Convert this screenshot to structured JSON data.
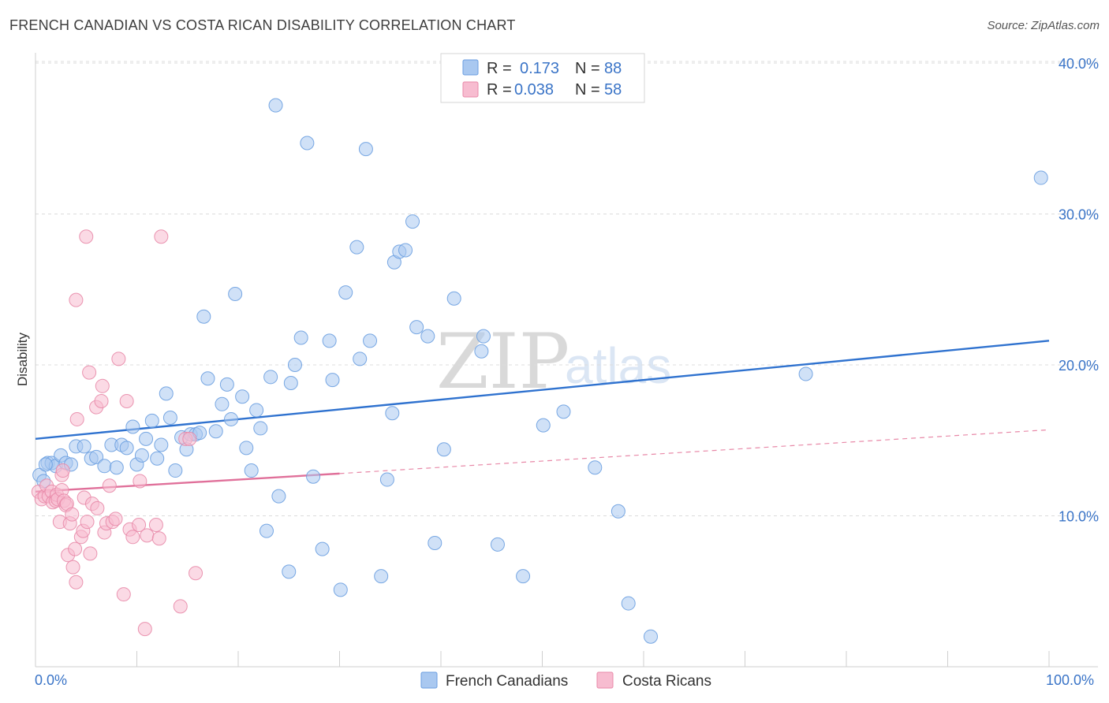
{
  "header": {
    "title": "FRENCH CANADIAN VS COSTA RICAN DISABILITY CORRELATION CHART",
    "source": "Source: ZipAtlas.com"
  },
  "watermark": {
    "zip": "ZIP",
    "atlas": "atlas"
  },
  "legend": {
    "rows": [
      {
        "r_label": "R =",
        "r_value": "0.173",
        "n_label": "N =",
        "n_value": "88",
        "color": "#a9c8f0",
        "stroke": "#6a9ee0"
      },
      {
        "r_label": "R =",
        "r_value": "0.038",
        "n_label": "N =",
        "n_value": "58",
        "color": "#f7bcd0",
        "stroke": "#e889a8"
      }
    ]
  },
  "chart_data": {
    "type": "scatter",
    "title": "FRENCH CANADIAN VS COSTA RICAN DISABILITY CORRELATION CHART",
    "xlabel": "",
    "ylabel": "Disability",
    "xlim": [
      0,
      100
    ],
    "ylim": [
      0,
      41
    ],
    "x_tick_labels": [
      "0.0%",
      "100.0%"
    ],
    "y_ticks": [
      10,
      20,
      30,
      40
    ],
    "y_tick_labels": [
      "10.0%",
      "20.0%",
      "30.0%",
      "40.0%"
    ],
    "grid": true,
    "legend_position": "top-center",
    "series": [
      {
        "name": "French Canadians",
        "color": "#6a9ee0",
        "fill": "#a9c8f0",
        "trend": {
          "x": [
            0,
            100
          ],
          "y": [
            15.1,
            21.6
          ]
        },
        "points": [
          [
            0.4,
            12.7
          ],
          [
            0.8,
            12.3
          ],
          [
            1.2,
            13.5
          ],
          [
            1.6,
            13.5
          ],
          [
            2.0,
            13.3
          ],
          [
            2.5,
            14.0
          ],
          [
            3.0,
            13.5
          ],
          [
            3.5,
            13.4
          ],
          [
            4.0,
            14.6
          ],
          [
            4.8,
            14.6
          ],
          [
            5.5,
            13.8
          ],
          [
            6.0,
            13.9
          ],
          [
            6.8,
            13.3
          ],
          [
            7.5,
            14.7
          ],
          [
            8.0,
            13.2
          ],
          [
            8.5,
            14.7
          ],
          [
            9.0,
            14.5
          ],
          [
            9.6,
            15.9
          ],
          [
            10.0,
            13.4
          ],
          [
            10.5,
            14.0
          ],
          [
            10.9,
            15.1
          ],
          [
            11.5,
            16.3
          ],
          [
            12.0,
            13.8
          ],
          [
            12.4,
            14.7
          ],
          [
            12.9,
            18.1
          ],
          [
            13.3,
            16.5
          ],
          [
            13.8,
            13.0
          ],
          [
            14.4,
            15.2
          ],
          [
            14.9,
            14.4
          ],
          [
            15.3,
            15.4
          ],
          [
            15.8,
            15.4
          ],
          [
            16.2,
            15.5
          ],
          [
            16.6,
            23.2
          ],
          [
            17.0,
            19.1
          ],
          [
            17.8,
            15.6
          ],
          [
            18.4,
            17.4
          ],
          [
            18.9,
            18.7
          ],
          [
            19.3,
            16.4
          ],
          [
            19.7,
            24.7
          ],
          [
            20.4,
            17.9
          ],
          [
            20.8,
            14.5
          ],
          [
            21.3,
            13.0
          ],
          [
            21.8,
            17.0
          ],
          [
            22.2,
            15.8
          ],
          [
            22.8,
            9.0
          ],
          [
            23.2,
            19.2
          ],
          [
            23.7,
            37.2
          ],
          [
            24.0,
            11.3
          ],
          [
            25.0,
            6.3
          ],
          [
            25.2,
            18.8
          ],
          [
            25.6,
            20.0
          ],
          [
            26.2,
            21.8
          ],
          [
            26.8,
            34.7
          ],
          [
            27.4,
            12.6
          ],
          [
            28.3,
            7.8
          ],
          [
            29.0,
            21.6
          ],
          [
            29.3,
            19.0
          ],
          [
            30.1,
            5.1
          ],
          [
            30.6,
            24.8
          ],
          [
            32.0,
            20.4
          ],
          [
            32.6,
            34.3
          ],
          [
            33.0,
            21.6
          ],
          [
            31.7,
            27.8
          ],
          [
            34.1,
            6.0
          ],
          [
            34.7,
            12.4
          ],
          [
            35.2,
            16.8
          ],
          [
            35.4,
            26.8
          ],
          [
            35.9,
            27.5
          ],
          [
            36.5,
            27.6
          ],
          [
            37.2,
            29.5
          ],
          [
            37.6,
            22.5
          ],
          [
            38.7,
            21.9
          ],
          [
            39.4,
            8.2
          ],
          [
            40.3,
            14.4
          ],
          [
            41.3,
            24.4
          ],
          [
            44.2,
            21.9
          ],
          [
            44.0,
            20.9
          ],
          [
            45.6,
            8.1
          ],
          [
            48.1,
            6.0
          ],
          [
            50.1,
            16.0
          ],
          [
            52.1,
            16.9
          ],
          [
            55.2,
            13.2
          ],
          [
            57.5,
            10.3
          ],
          [
            58.5,
            4.2
          ],
          [
            60.7,
            2.0
          ],
          [
            76.0,
            19.4
          ],
          [
            99.2,
            32.4
          ],
          [
            1.0,
            13.4
          ]
        ]
      },
      {
        "name": "Costa Ricans",
        "color": "#e889a8",
        "fill": "#f7bcd0",
        "trend": {
          "x": [
            0,
            30
          ],
          "y": [
            11.6,
            12.8
          ]
        },
        "trend_ext": {
          "x": [
            30,
            100
          ],
          "y": [
            12.8,
            15.7
          ]
        },
        "points": [
          [
            0.3,
            11.6
          ],
          [
            0.6,
            11.1
          ],
          [
            0.9,
            11.3
          ],
          [
            1.1,
            12.0
          ],
          [
            1.3,
            11.3
          ],
          [
            1.6,
            11.6
          ],
          [
            1.7,
            10.9
          ],
          [
            2.0,
            11.0
          ],
          [
            2.1,
            11.4
          ],
          [
            2.2,
            11.1
          ],
          [
            2.4,
            9.6
          ],
          [
            2.6,
            12.7
          ],
          [
            2.6,
            11.7
          ],
          [
            2.7,
            13.0
          ],
          [
            2.8,
            11.0
          ],
          [
            3.0,
            10.7
          ],
          [
            3.1,
            10.8
          ],
          [
            3.2,
            7.4
          ],
          [
            3.4,
            9.5
          ],
          [
            3.6,
            10.1
          ],
          [
            3.7,
            6.6
          ],
          [
            3.9,
            7.8
          ],
          [
            4.1,
            16.4
          ],
          [
            4.0,
            5.6
          ],
          [
            4.0,
            24.3
          ],
          [
            4.5,
            8.6
          ],
          [
            4.7,
            9.0
          ],
          [
            4.8,
            11.2
          ],
          [
            5.0,
            28.5
          ],
          [
            5.1,
            9.6
          ],
          [
            5.3,
            19.5
          ],
          [
            5.4,
            7.5
          ],
          [
            5.6,
            10.8
          ],
          [
            6.0,
            17.2
          ],
          [
            6.1,
            10.5
          ],
          [
            6.5,
            17.6
          ],
          [
            6.6,
            18.6
          ],
          [
            6.8,
            8.9
          ],
          [
            7.0,
            9.5
          ],
          [
            7.3,
            12.0
          ],
          [
            7.6,
            9.6
          ],
          [
            7.9,
            9.8
          ],
          [
            8.2,
            20.4
          ],
          [
            8.7,
            4.8
          ],
          [
            9.0,
            17.6
          ],
          [
            9.3,
            9.1
          ],
          [
            9.6,
            8.6
          ],
          [
            10.2,
            9.4
          ],
          [
            10.3,
            12.3
          ],
          [
            10.8,
            2.5
          ],
          [
            11.0,
            8.7
          ],
          [
            12.4,
            28.5
          ],
          [
            11.9,
            9.4
          ],
          [
            14.8,
            15.1
          ],
          [
            15.2,
            15.1
          ],
          [
            15.8,
            6.2
          ],
          [
            14.3,
            4.0
          ],
          [
            12.2,
            8.5
          ]
        ]
      }
    ]
  }
}
